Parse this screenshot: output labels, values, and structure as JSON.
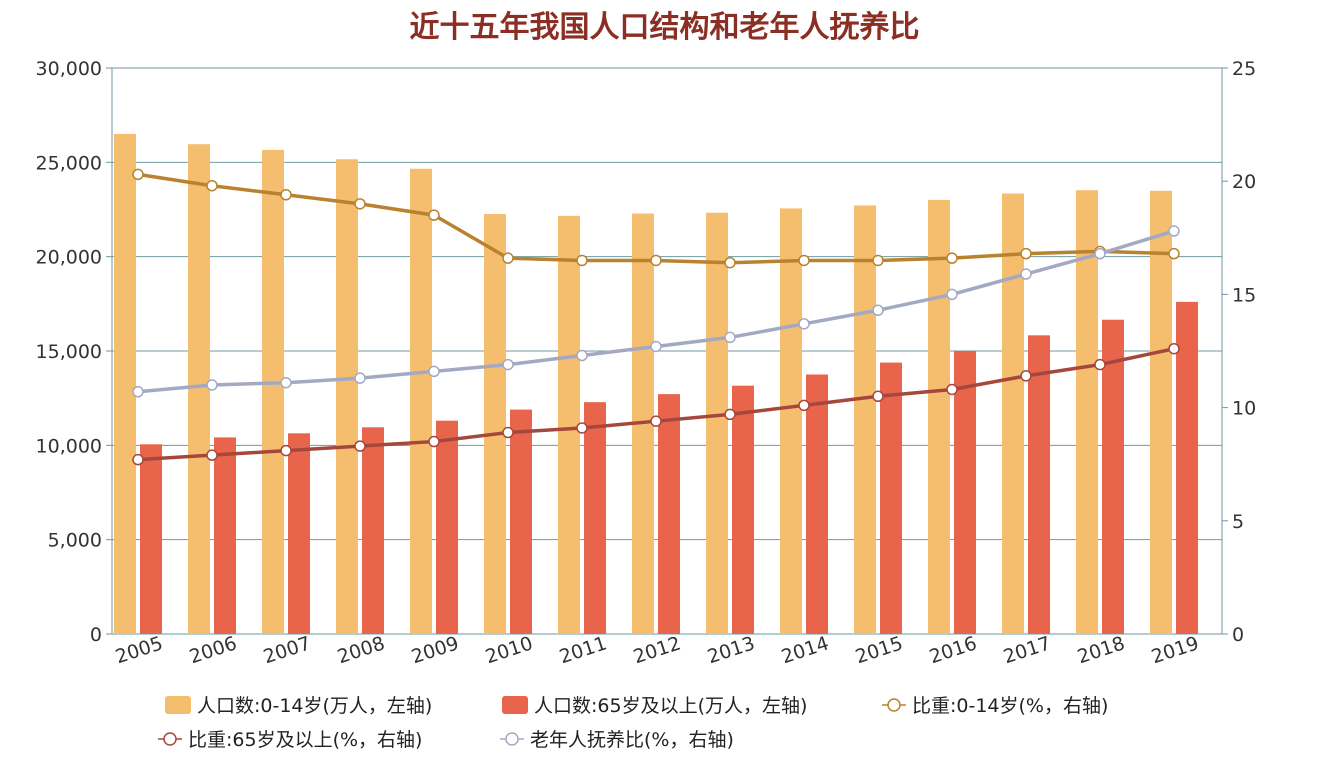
{
  "chart_data": {
    "type": "bar",
    "title": "近十五年我国人口结构和老年人抚养比",
    "categories": [
      "2005",
      "2006",
      "2007",
      "2008",
      "2009",
      "2010",
      "2011",
      "2012",
      "2013",
      "2014",
      "2015",
      "2016",
      "2017",
      "2018",
      "2019"
    ],
    "y_left": {
      "min": 0,
      "max": 30000,
      "ticks": [
        "0",
        "5,000",
        "10,000",
        "15,000",
        "20,000",
        "25,000",
        "30,000"
      ]
    },
    "y_right": {
      "min": 0,
      "max": 25,
      "ticks": [
        "0",
        "5",
        "10",
        "15",
        "20",
        "25"
      ]
    },
    "series": [
      {
        "name": "人口数:0-14岁(万人，左轴)",
        "type": "bar",
        "axis": "left",
        "color": "#f5be6e",
        "values": [
          26504,
          25961,
          25660,
          25166,
          24659,
          22259,
          22164,
          22287,
          22329,
          22558,
          22715,
          23008,
          23348,
          23523,
          23492
        ]
      },
      {
        "name": "人口数:65岁及以上(万人，左轴)",
        "type": "bar",
        "axis": "left",
        "color": "#e8644b",
        "values": [
          10055,
          10419,
          10636,
          10956,
          11307,
          11894,
          12288,
          12714,
          13161,
          13755,
          14386,
          15003,
          15831,
          16658,
          17603
        ]
      },
      {
        "name": "比重:0-14岁(%，右轴)",
        "type": "line",
        "axis": "right",
        "color": "#b8822e",
        "values": [
          20.3,
          19.8,
          19.4,
          19.0,
          18.5,
          16.6,
          16.5,
          16.5,
          16.4,
          16.5,
          16.5,
          16.6,
          16.8,
          16.9,
          16.8
        ]
      },
      {
        "name": "比重:65岁及以上(%，右轴)",
        "type": "line",
        "axis": "right",
        "color": "#a6473e",
        "values": [
          7.7,
          7.9,
          8.1,
          8.3,
          8.5,
          8.9,
          9.1,
          9.4,
          9.7,
          10.1,
          10.5,
          10.8,
          11.4,
          11.9,
          12.6
        ]
      },
      {
        "name": "老年人抚养比(%，右轴)",
        "type": "line",
        "axis": "right",
        "color": "#a3a9c4",
        "values": [
          10.7,
          11.0,
          11.1,
          11.3,
          11.6,
          11.9,
          12.3,
          12.7,
          13.1,
          13.7,
          14.3,
          15.0,
          15.9,
          16.8,
          17.8
        ]
      }
    ],
    "grid": true,
    "legend": "bottom"
  }
}
